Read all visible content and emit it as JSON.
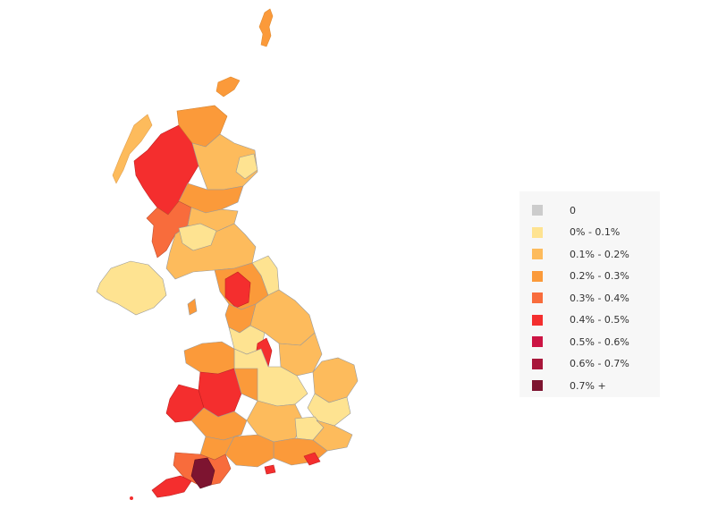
{
  "legend": {
    "items": [
      {
        "label": "0",
        "color": "#cccccc"
      },
      {
        "label": "0% - 0.1%",
        "color": "#fee391"
      },
      {
        "label": "0.1% - 0.2%",
        "color": "#fdbb5c"
      },
      {
        "label": "0.2% - 0.3%",
        "color": "#fb9a3a"
      },
      {
        "label": "0.3% - 0.4%",
        "color": "#f86c3c"
      },
      {
        "label": "0.4% - 0.5%",
        "color": "#f42e2e"
      },
      {
        "label": "0.5% - 0.6%",
        "color": "#cc1443"
      },
      {
        "label": "0.6% - 0.7%",
        "color": "#a8163a"
      },
      {
        "label": "0.7% +",
        "color": "#7d1430"
      }
    ]
  },
  "map": {
    "region": "United Kingdom local authority districts",
    "border_color": "#9a9a9a"
  }
}
